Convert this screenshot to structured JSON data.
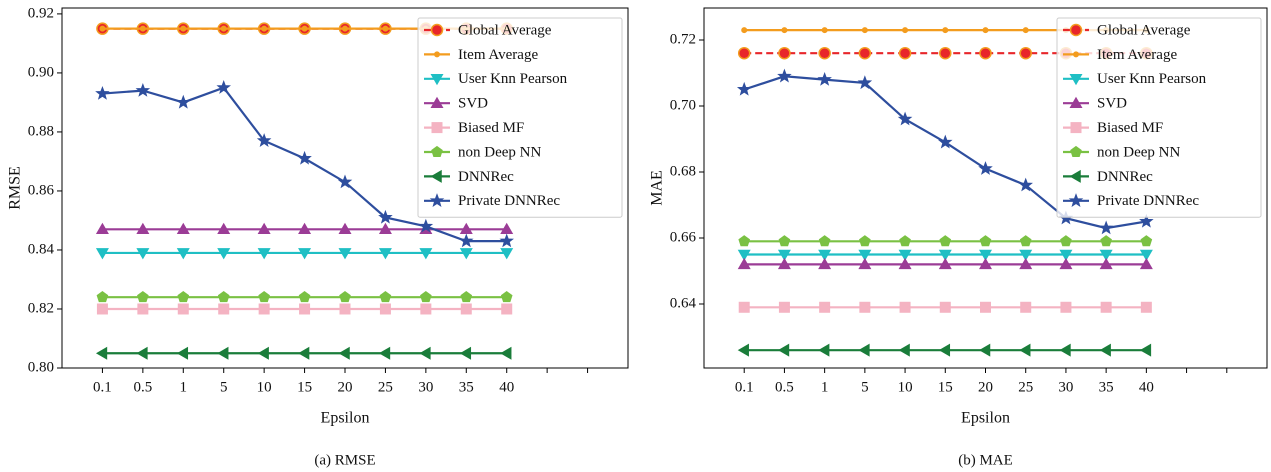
{
  "chart_data": [
    {
      "type": "line",
      "ylabel": "RMSE",
      "xlabel": "Epsilon",
      "caption": "(a) RMSE",
      "categories": [
        "0.1",
        "0.5",
        "1",
        "5",
        "10",
        "15",
        "20",
        "25",
        "30",
        "35",
        "40",
        null,
        null
      ],
      "ylim": [
        0.8,
        0.922
      ],
      "yticks": [
        {
          "value": 0.8,
          "label": "0.80"
        },
        0.82,
        0.84,
        0.86,
        0.88,
        {
          "value": 0.9,
          "label": "0.90"
        },
        0.92
      ],
      "legend": "upper right",
      "series": [
        {
          "name": "Global Average",
          "color": "#e8262a",
          "marker": "circle",
          "dash": true,
          "values": [
            0.915,
            0.915,
            0.915,
            0.915,
            0.915,
            0.915,
            0.915,
            0.915,
            0.915,
            0.915,
            0.915,
            null,
            null
          ]
        },
        {
          "name": "Item Average",
          "color": "#f39c1e",
          "marker": "dot",
          "values": [
            0.915,
            0.915,
            0.915,
            0.915,
            0.915,
            0.915,
            0.915,
            0.915,
            0.915,
            0.915,
            0.915,
            null,
            null
          ]
        },
        {
          "name": "User Knn Pearson",
          "color": "#1fbfc4",
          "marker": "tri-down",
          "values": [
            0.839,
            0.839,
            0.839,
            0.839,
            0.839,
            0.839,
            0.839,
            0.839,
            0.839,
            0.839,
            0.839,
            null,
            null
          ]
        },
        {
          "name": "SVD",
          "color": "#9b3c96",
          "marker": "tri-up",
          "values": [
            0.847,
            0.847,
            0.847,
            0.847,
            0.847,
            0.847,
            0.847,
            0.847,
            0.847,
            0.847,
            0.847,
            null,
            null
          ]
        },
        {
          "name": "Biased MF",
          "color": "#f4b3c2",
          "marker": "square",
          "values": [
            0.82,
            0.82,
            0.82,
            0.82,
            0.82,
            0.82,
            0.82,
            0.82,
            0.82,
            0.82,
            0.82,
            null,
            null
          ]
        },
        {
          "name": "non Deep NN",
          "color": "#7ac143",
          "marker": "pentagon",
          "values": [
            0.824,
            0.824,
            0.824,
            0.824,
            0.824,
            0.824,
            0.824,
            0.824,
            0.824,
            0.824,
            0.824,
            null,
            null
          ]
        },
        {
          "name": "DNNRec",
          "color": "#1a7d3a",
          "marker": "tri-left",
          "values": [
            0.805,
            0.805,
            0.805,
            0.805,
            0.805,
            0.805,
            0.805,
            0.805,
            0.805,
            0.805,
            0.805,
            null,
            null
          ]
        },
        {
          "name": "Private DNNRec",
          "color": "#2e4e9e",
          "marker": "star",
          "values": [
            0.893,
            0.894,
            0.89,
            0.895,
            0.877,
            0.871,
            0.863,
            0.851,
            0.848,
            0.843,
            0.843,
            null,
            null
          ]
        }
      ]
    },
    {
      "type": "line",
      "ylabel": "MAE",
      "xlabel": "Epsilon",
      "caption": "(b) MAE",
      "categories": [
        "0.1",
        "0.5",
        "1",
        "5",
        "10",
        "15",
        "20",
        "25",
        "30",
        "35",
        "40",
        null,
        null
      ],
      "ylim": [
        0.6206,
        0.7297
      ],
      "yticks": [
        0.64,
        0.66,
        0.68,
        {
          "value": 0.7,
          "label": "0.70"
        },
        0.72
      ],
      "legend": "upper right",
      "series": [
        {
          "name": "Global Average",
          "color": "#e8262a",
          "marker": "circle",
          "dash": true,
          "values": [
            0.716,
            0.716,
            0.716,
            0.716,
            0.716,
            0.716,
            0.716,
            0.716,
            0.716,
            0.716,
            0.716,
            null,
            null
          ]
        },
        {
          "name": "Item Average",
          "color": "#f39c1e",
          "marker": "dot",
          "values": [
            0.723,
            0.723,
            0.723,
            0.723,
            0.723,
            0.723,
            0.723,
            0.723,
            0.723,
            0.723,
            0.723,
            null,
            null
          ]
        },
        {
          "name": "User Knn Pearson",
          "color": "#1fbfc4",
          "marker": "tri-down",
          "values": [
            0.655,
            0.655,
            0.655,
            0.655,
            0.655,
            0.655,
            0.655,
            0.655,
            0.655,
            0.655,
            0.655,
            null,
            null
          ]
        },
        {
          "name": "SVD",
          "color": "#9b3c96",
          "marker": "tri-up",
          "values": [
            0.652,
            0.652,
            0.652,
            0.652,
            0.652,
            0.652,
            0.652,
            0.652,
            0.652,
            0.652,
            0.652,
            null,
            null
          ]
        },
        {
          "name": "Biased MF",
          "color": "#f4b3c2",
          "marker": "square",
          "values": [
            0.639,
            0.639,
            0.639,
            0.639,
            0.639,
            0.639,
            0.639,
            0.639,
            0.639,
            0.639,
            0.639,
            null,
            null
          ]
        },
        {
          "name": "non Deep NN",
          "color": "#7ac143",
          "marker": "pentagon",
          "values": [
            0.659,
            0.659,
            0.659,
            0.659,
            0.659,
            0.659,
            0.659,
            0.659,
            0.659,
            0.659,
            0.659,
            null,
            null
          ]
        },
        {
          "name": "DNNRec",
          "color": "#1a7d3a",
          "marker": "tri-left",
          "values": [
            0.626,
            0.626,
            0.626,
            0.626,
            0.626,
            0.626,
            0.626,
            0.626,
            0.626,
            0.626,
            0.626,
            null,
            null
          ]
        },
        {
          "name": "Private DNNRec",
          "color": "#2e4e9e",
          "marker": "star",
          "values": [
            0.705,
            0.709,
            0.708,
            0.707,
            0.696,
            0.689,
            0.681,
            0.676,
            0.666,
            0.663,
            0.665,
            null,
            null
          ]
        }
      ]
    }
  ]
}
